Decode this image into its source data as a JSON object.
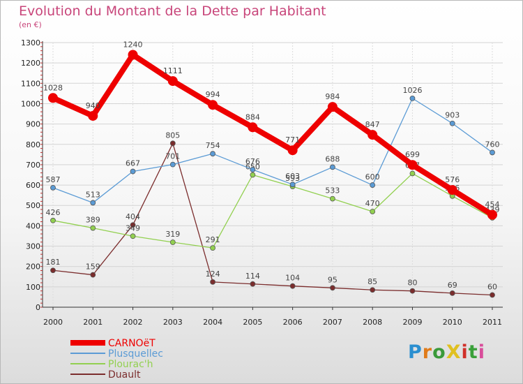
{
  "title": "Evolution du Montant de la Dette par Habitant",
  "subtitle": "(en €)",
  "logo": {
    "text": "ProXiti",
    "letter_colors": [
      "#2b8fd0",
      "#e07b1a",
      "#3a9a3a",
      "#e0c020",
      "#d0302a",
      "#3aa03a",
      "#d84d9a"
    ]
  },
  "chart_data": {
    "type": "line",
    "title": "Evolution du Montant de la Dette par Habitant",
    "subtitle": "(en €)",
    "xlabel": "",
    "ylabel": "",
    "ylim": [
      0,
      1300
    ],
    "yticks": [
      0,
      100,
      200,
      300,
      400,
      500,
      600,
      700,
      800,
      900,
      1000,
      1100,
      1200,
      1300
    ],
    "grid": true,
    "legend_position": "bottom-left",
    "x": [
      "2000",
      "2001",
      "2002",
      "2003",
      "2004",
      "2005",
      "2006",
      "2007",
      "2008",
      "2009",
      "2010",
      "2011"
    ],
    "series": [
      {
        "name": "CARNOëT",
        "color": "#ee0000",
        "values": [
          1028,
          940,
          1240,
          1111,
          994,
          884,
          771,
          984,
          847,
          699,
          576,
          454
        ]
      },
      {
        "name": "Plusquellec",
        "color": "#5b9bd5",
        "values": [
          587,
          513,
          667,
          701,
          754,
          676,
          603,
          688,
          600,
          1026,
          903,
          760
        ]
      },
      {
        "name": "Plourac'h",
        "color": "#92d050",
        "values": [
          426,
          389,
          349,
          319,
          291,
          650,
          593,
          533,
          470,
          657,
          546,
          439
        ]
      },
      {
        "name": "Duault",
        "color": "#7b2d2d",
        "values": [
          181,
          159,
          404,
          805,
          124,
          114,
          104,
          95,
          85,
          80,
          69,
          60
        ]
      }
    ]
  }
}
